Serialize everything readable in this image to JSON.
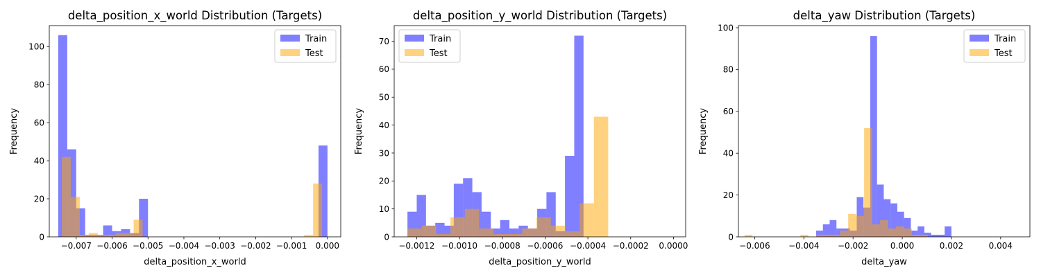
{
  "chart_data": [
    {
      "type": "histogram",
      "title": "delta_position_x_world Distribution (Targets)",
      "xlabel": "delta_position_x_world",
      "ylabel": "Frequency",
      "xlim": [
        -0.00775,
        0.00037
      ],
      "ylim": [
        0,
        111
      ],
      "xticks": [
        -0.007,
        -0.006,
        -0.005,
        -0.004,
        -0.003,
        -0.002,
        -0.001,
        0.0
      ],
      "xtick_labels": [
        "−0.007",
        "−0.006",
        "−0.005",
        "−0.004",
        "−0.003",
        "−0.002",
        "−0.001",
        "0.000"
      ],
      "yticks": [
        0,
        20,
        40,
        60,
        80,
        100
      ],
      "legend_position": "upper right",
      "series": [
        {
          "name": "Train",
          "color": "#0000ff",
          "alpha": 0.5,
          "bin_start": -0.0075,
          "bin_width": 0.00025,
          "values": [
            106,
            46,
            15,
            1,
            1,
            6,
            3,
            4,
            2,
            20,
            0,
            0,
            0,
            0,
            0,
            0,
            0,
            0,
            0,
            0,
            0,
            0,
            0,
            0,
            0,
            0,
            0,
            0,
            0,
            48
          ]
        },
        {
          "name": "Test",
          "color": "#ffa500",
          "alpha": 0.5,
          "bin_start": -0.0074,
          "bin_width": 0.00025,
          "values": [
            42,
            21,
            1,
            2,
            1,
            1,
            2,
            2,
            9,
            0,
            0,
            0,
            0,
            0,
            0,
            0,
            0,
            0,
            0,
            0,
            0,
            0,
            0,
            0,
            0,
            0,
            0,
            1,
            28
          ]
        }
      ]
    },
    {
      "type": "histogram",
      "title": "delta_position_y_world Distribution (Targets)",
      "xlabel": "delta_position_y_world",
      "ylabel": "Frequency",
      "xlim": [
        -0.001305,
        5.7e-05
      ],
      "ylim": [
        0,
        75.6
      ],
      "xticks": [
        -0.0012,
        -0.001,
        -0.0008,
        -0.0006,
        -0.0004,
        -0.0002,
        0.0
      ],
      "xtick_labels": [
        "−0.0012",
        "−0.0010",
        "−0.0008",
        "−0.0006",
        "−0.0004",
        "−0.0002",
        "0.0000"
      ],
      "yticks": [
        0,
        10,
        20,
        30,
        40,
        50,
        60,
        70
      ],
      "legend_position": "upper left",
      "series": [
        {
          "name": "Train",
          "color": "#0000ff",
          "alpha": 0.5,
          "bin_start": -0.001243,
          "bin_width": 4.33e-05,
          "values": [
            9,
            15,
            4,
            5,
            4,
            19,
            21,
            16,
            9,
            3,
            6,
            3,
            4,
            3,
            10,
            16,
            2,
            29,
            72
          ]
        },
        {
          "name": "Test",
          "color": "#ffa500",
          "alpha": 0.5,
          "bin_start": -0.001243,
          "bin_width": 6.7e-05,
          "values": [
            3,
            4,
            1,
            7,
            10,
            3,
            1,
            1,
            3,
            7,
            4,
            2,
            12,
            43
          ]
        }
      ]
    },
    {
      "type": "histogram",
      "title": "delta_yaw Distribution (Targets)",
      "xlabel": "delta_yaw",
      "ylabel": "Frequency",
      "xlim": [
        -0.00666,
        0.00519
      ],
      "ylim": [
        0,
        101
      ],
      "xticks": [
        -0.006,
        -0.004,
        -0.002,
        0.0,
        0.002,
        0.004
      ],
      "xtick_labels": [
        "−0.006",
        "−0.004",
        "−0.002",
        "0.000",
        "0.002",
        "0.004"
      ],
      "yticks": [
        0,
        20,
        40,
        60,
        80,
        100
      ],
      "legend_position": "upper right",
      "series": [
        {
          "name": "Train",
          "color": "#0000ff",
          "alpha": 0.5,
          "bin_start": -0.0035,
          "bin_width": 0.000275,
          "values": [
            3,
            6,
            8,
            4,
            4,
            3,
            19,
            14,
            96,
            25,
            18,
            16,
            12,
            9,
            3,
            5,
            2,
            1,
            1,
            5
          ]
        },
        {
          "name": "Test",
          "color": "#ffa500",
          "alpha": 0.5,
          "bin_start": -0.00641,
          "bin_width": 0.000324,
          "values": [
            1,
            0,
            0,
            0,
            0,
            0,
            0,
            1,
            0,
            1,
            1,
            1,
            3,
            11,
            10,
            52,
            6,
            8,
            4,
            5,
            4,
            1,
            1
          ]
        }
      ]
    }
  ]
}
